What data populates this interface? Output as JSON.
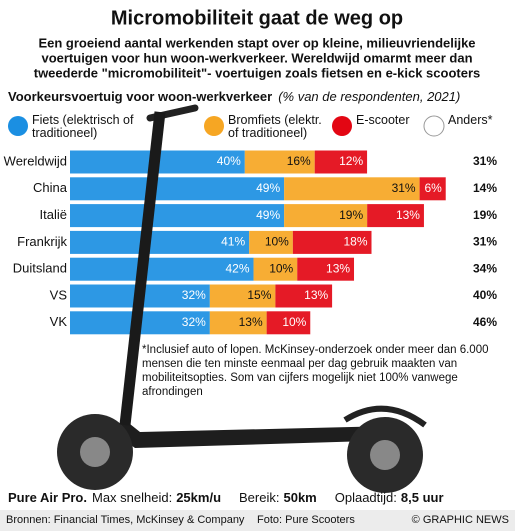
{
  "chart_data": {
    "type": "stacked-bar",
    "title": "Micromobiliteit gaat de weg op",
    "subtitle_lines": [
      "Een groeiend aantal werkenden stapt over op kleine, milieuvriendelijke",
      "voertuigen voor hun woon-werkverkeer. Wereldwijd omarmt meer dan",
      "tweederde \"micromobiliteit\"- voertuigen zoals fietsen en e-kick scooters"
    ],
    "heading": "Voorkeursvoertuig voor woon-werkverkeer",
    "heading_note": "(% van de respondenten, 2021)",
    "categories": [
      "Wereldwijd",
      "China",
      "Italië",
      "Frankrijk",
      "Duitsland",
      "VS",
      "VK"
    ],
    "series": [
      {
        "name": "Fiets (elektrisch of traditioneel)",
        "color": "#1b8fe2",
        "values": [
          40,
          49,
          49,
          41,
          42,
          32,
          32
        ],
        "value_labels": [
          "40%",
          "49%",
          "49%",
          "41%",
          "42%",
          "32%",
          "32%"
        ]
      },
      {
        "name": "Bromfiets (elektr. of traditioneel)",
        "color": "#f6a623",
        "values": [
          16,
          31,
          19,
          10,
          10,
          15,
          13
        ],
        "value_labels": [
          "16%",
          "31%",
          "19%",
          "10%",
          "10%",
          "15%",
          "13%"
        ]
      },
      {
        "name": "E-scooter",
        "color": "#e30613",
        "values": [
          12,
          6,
          13,
          18,
          13,
          13,
          10
        ],
        "value_labels": [
          "12%",
          "6%",
          "13%",
          "18%",
          "13%",
          "13%",
          "10%"
        ]
      },
      {
        "name": "Anders*",
        "color": "#ffffff",
        "values": [
          31,
          14,
          19,
          31,
          34,
          40,
          46
        ],
        "value_labels": [
          "31%",
          "14%",
          "19%",
          "31%",
          "34%",
          "40%",
          "46%"
        ]
      }
    ],
    "footnote": "*Inclusief auto of lopen. McKinsey-onderzoek onder meer dan 6.000 mensen die ten minste eenmaal per dag gebruik maakten van mobiliteitsopties. Som van cijfers mogelijk niet 100% vanwege afrondingen",
    "specs": {
      "model": "Pure Air Pro.",
      "items": [
        {
          "label": "Max snelheid:",
          "value": "25km/u"
        },
        {
          "label": "Bereik:",
          "value": "50km"
        },
        {
          "label": "Oplaadtijd:",
          "value": "8,5 uur"
        }
      ]
    },
    "sources": "Bronnen: Financial Times, McKinsey & Company",
    "photo": "Foto: Pure Scooters",
    "credit": "© GRAPHIC NEWS"
  }
}
